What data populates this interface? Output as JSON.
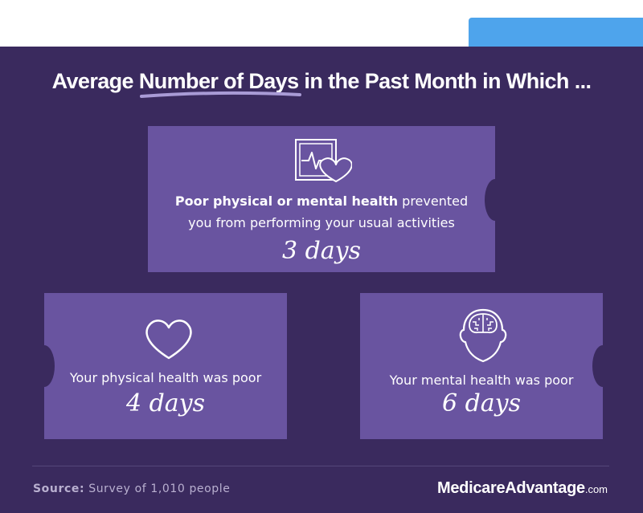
{
  "headline": {
    "pre": "Average ",
    "emphasis": "Number of Days",
    "post": " in the Past Month in Which ..."
  },
  "cards": [
    {
      "icon": "heart-monitor-icon",
      "bold": "Poor physical or mental health",
      "line1_rest": " prevented",
      "line2": "you from performing your usual activities",
      "days": "3 days"
    },
    {
      "icon": "heart-outline-icon",
      "text": "Your physical health was poor",
      "days": "4 days"
    },
    {
      "icon": "brain-head-icon",
      "text": "Your mental health was poor",
      "days": "6 days"
    }
  ],
  "footer": {
    "source_label": "Source:",
    "source_text": " Survey of 1,010 people",
    "brand_main": "MedicareAdvantage",
    "brand_suffix": ".com"
  },
  "colors": {
    "background": "#3a2a5e",
    "card": "#6954a0",
    "accent_tab": "#4ea4ec",
    "underline": "#a99bd6"
  }
}
